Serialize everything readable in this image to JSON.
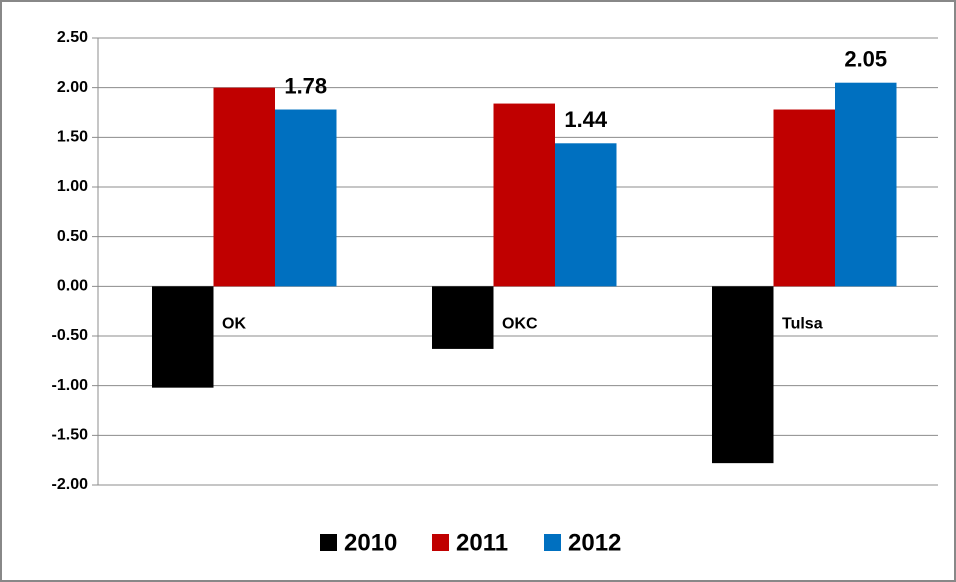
{
  "chart_data": {
    "type": "bar",
    "categories": [
      "OK",
      "OKC",
      "Tulsa"
    ],
    "series": [
      {
        "name": "2010",
        "color": "#000000",
        "values": [
          -1.02,
          -0.63,
          -1.78
        ]
      },
      {
        "name": "2011",
        "color": "#c00000",
        "values": [
          2.0,
          1.84,
          1.78
        ]
      },
      {
        "name": "2012",
        "color": "#0070c0",
        "values": [
          1.78,
          1.44,
          2.05
        ],
        "data_labels": true
      }
    ],
    "ylim": [
      -2,
      2.5
    ],
    "yticks": [
      {
        "value": 2.5,
        "label": "2.50"
      },
      {
        "value": 2,
        "label": "2.00"
      },
      {
        "value": 1.5,
        "label": "1.50"
      },
      {
        "value": 1,
        "label": "1.00"
      },
      {
        "value": 0.5,
        "label": "0.50"
      },
      {
        "value": 0,
        "label": "0.00"
      },
      {
        "value": -0.5,
        "label": "-0.50"
      },
      {
        "value": -1,
        "label": "-1.00"
      },
      {
        "value": -1.5,
        "label": "-1.50"
      },
      {
        "value": -2,
        "label": "-2.00"
      }
    ],
    "grid": true,
    "legend": "bottom"
  }
}
